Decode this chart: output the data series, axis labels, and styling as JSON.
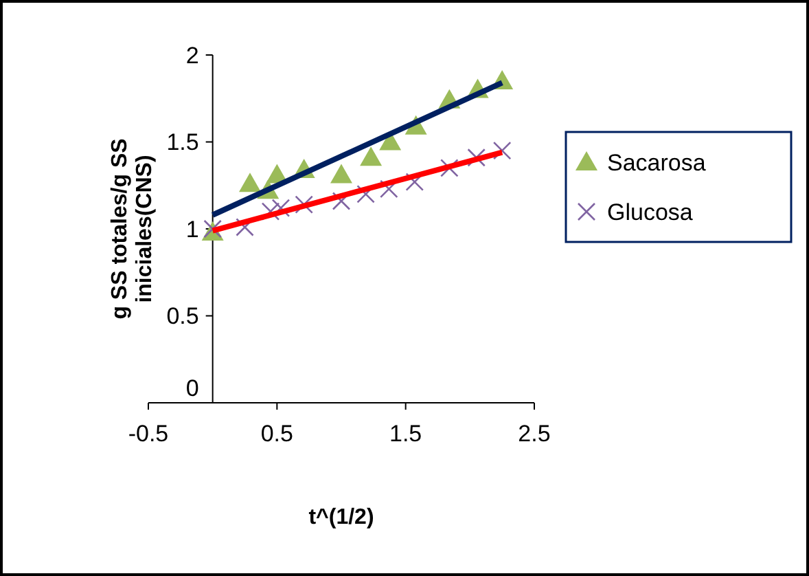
{
  "chart_data": {
    "type": "scatter",
    "xlabel": "t^(1/2)",
    "ylabel": "g SS totales/g SS iniciales(CNS)",
    "xlim": [
      -0.5,
      2.5
    ],
    "xticks": [
      -0.5,
      0.5,
      1.5,
      2.5
    ],
    "ylim": [
      0,
      2
    ],
    "yticks": [
      0,
      0.5,
      1,
      1.5,
      2
    ],
    "grid": false,
    "legend": "right",
    "series": [
      {
        "name": "Sacarosa",
        "color": "#9bbb59",
        "marker": "triangle",
        "x": [
          0,
          0.29,
          0.43,
          0.5,
          0.71,
          1.0,
          1.23,
          1.38,
          1.58,
          1.84,
          2.06,
          2.25
        ],
        "values": [
          0.98,
          1.26,
          1.22,
          1.31,
          1.34,
          1.31,
          1.41,
          1.5,
          1.59,
          1.74,
          1.8,
          1.85
        ]
      },
      {
        "name": "Glucosa",
        "color": "#8064a2",
        "marker": "cross",
        "x": [
          0,
          0.25,
          0.45,
          0.53,
          0.71,
          1.0,
          1.19,
          1.37,
          1.57,
          1.84,
          2.05,
          2.25
        ],
        "values": [
          1.0,
          1.01,
          1.1,
          1.12,
          1.14,
          1.16,
          1.2,
          1.23,
          1.27,
          1.35,
          1.41,
          1.45
        ]
      },
      {
        "type": "line",
        "color": "#002060",
        "marker": "none",
        "x": [
          0,
          2.25
        ],
        "values": [
          1.08,
          1.84
        ]
      },
      {
        "type": "line",
        "color": "#ff0000",
        "marker": "none",
        "x": [
          0,
          2.25
        ],
        "values": [
          0.99,
          1.44
        ]
      }
    ]
  }
}
